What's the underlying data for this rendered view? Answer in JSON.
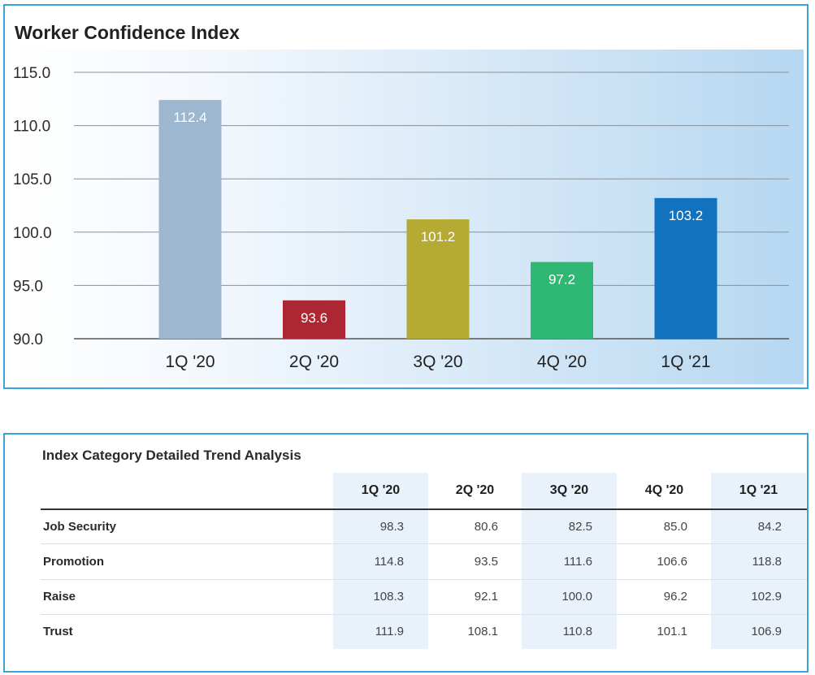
{
  "chart_data": {
    "type": "bar",
    "title": "Worker Confidence Index",
    "categories": [
      "1Q '20",
      "2Q '20",
      "3Q '20",
      "4Q '20",
      "1Q '21"
    ],
    "values": [
      112.4,
      93.6,
      101.2,
      97.2,
      103.2
    ],
    "value_labels": [
      "112.4",
      "93.6",
      "101.2",
      "97.2",
      "103.2"
    ],
    "colors": [
      "#9eb7d0",
      "#ad2634",
      "#b5aa33",
      "#2fb873",
      "#1372be"
    ],
    "ylim": [
      90,
      115
    ],
    "yticks": [
      "115.0",
      "110.0",
      "105.0",
      "100.0",
      "95.0",
      "90.0"
    ],
    "xlabel": "",
    "ylabel": "",
    "grid": true
  },
  "table": {
    "title": "Index Category Detailed Trend Analysis",
    "columns": [
      "1Q '20",
      "2Q '20",
      "3Q '20",
      "4Q '20",
      "1Q '21"
    ],
    "rows": [
      {
        "label": "Job Security",
        "values": [
          "98.3",
          "80.6",
          "82.5",
          "85.0",
          "84.2"
        ]
      },
      {
        "label": "Promotion",
        "values": [
          "114.8",
          "93.5",
          "111.6",
          "106.6",
          "118.8"
        ]
      },
      {
        "label": "Raise",
        "values": [
          "108.3",
          "92.1",
          "100.0",
          "96.2",
          "102.9"
        ]
      },
      {
        "label": "Trust",
        "values": [
          "111.9",
          "108.1",
          "110.8",
          "101.1",
          "106.9"
        ]
      }
    ]
  }
}
